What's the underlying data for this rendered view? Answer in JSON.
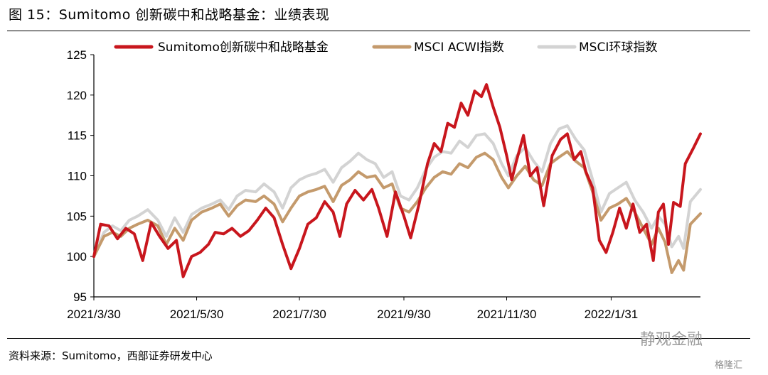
{
  "figure": {
    "title": "图 15：Sumitomo 创新碳中和战略基金：业绩表现",
    "source": "资料来源：Sumitomo，西部证券研发中心",
    "watermark": "静观金融",
    "watermark2": "格隆汇"
  },
  "chart_data": {
    "type": "line",
    "title": "",
    "xlabel": "",
    "ylabel": "",
    "ylim": [
      95,
      125
    ],
    "yticks": [
      95,
      100,
      105,
      110,
      115,
      120,
      125
    ],
    "xlim": [
      "2021-03-30",
      "2022-03-25"
    ],
    "xticks": [
      "2021/3/30",
      "2021/5/30",
      "2021/7/30",
      "2021/9/30",
      "2021/11/30",
      "2022/1/31"
    ],
    "xtick_dates": [
      "2021-03-30",
      "2021-05-30",
      "2021-07-30",
      "2021-09-30",
      "2021-11-30",
      "2022-01-31"
    ],
    "legend_position": "top",
    "grid": false,
    "series": [
      {
        "name": "Sumitomo创新碳中和战略基金",
        "color": "#c8161d",
        "points": [
          [
            "2021-03-30",
            100.0
          ],
          [
            "2021-04-03",
            104.0
          ],
          [
            "2021-04-08",
            103.8
          ],
          [
            "2021-04-13",
            102.2
          ],
          [
            "2021-04-18",
            103.5
          ],
          [
            "2021-04-23",
            102.8
          ],
          [
            "2021-04-28",
            99.5
          ],
          [
            "2021-05-03",
            104.2
          ],
          [
            "2021-05-08",
            102.5
          ],
          [
            "2021-05-13",
            101.0
          ],
          [
            "2021-05-18",
            102.0
          ],
          [
            "2021-05-22",
            97.5
          ],
          [
            "2021-05-27",
            100.0
          ],
          [
            "2021-06-01",
            100.5
          ],
          [
            "2021-06-06",
            101.5
          ],
          [
            "2021-06-10",
            103.0
          ],
          [
            "2021-06-15",
            102.8
          ],
          [
            "2021-06-20",
            103.5
          ],
          [
            "2021-06-25",
            102.5
          ],
          [
            "2021-06-30",
            103.2
          ],
          [
            "2021-07-05",
            104.5
          ],
          [
            "2021-07-10",
            106.0
          ],
          [
            "2021-07-15",
            104.8
          ],
          [
            "2021-07-20",
            101.5
          ],
          [
            "2021-07-25",
            98.5
          ],
          [
            "2021-07-30",
            101.0
          ],
          [
            "2021-08-04",
            104.0
          ],
          [
            "2021-08-09",
            104.8
          ],
          [
            "2021-08-14",
            106.8
          ],
          [
            "2021-08-19",
            105.5
          ],
          [
            "2021-08-23",
            102.5
          ],
          [
            "2021-08-27",
            106.5
          ],
          [
            "2021-09-01",
            108.2
          ],
          [
            "2021-09-06",
            107.0
          ],
          [
            "2021-09-11",
            108.3
          ],
          [
            "2021-09-15",
            106.0
          ],
          [
            "2021-09-20",
            102.5
          ],
          [
            "2021-09-25",
            108.0
          ],
          [
            "2021-09-30",
            105.0
          ],
          [
            "2021-10-04",
            102.3
          ],
          [
            "2021-10-09",
            106.5
          ],
          [
            "2021-10-14",
            111.5
          ],
          [
            "2021-10-18",
            114.0
          ],
          [
            "2021-10-22",
            113.0
          ],
          [
            "2021-10-26",
            116.5
          ],
          [
            "2021-10-30",
            116.0
          ],
          [
            "2021-11-03",
            119.0
          ],
          [
            "2021-11-07",
            117.5
          ],
          [
            "2021-11-11",
            120.5
          ],
          [
            "2021-11-15",
            119.8
          ],
          [
            "2021-11-18",
            121.3
          ],
          [
            "2021-11-22",
            118.5
          ],
          [
            "2021-11-26",
            116.0
          ],
          [
            "2021-11-30",
            112.5
          ],
          [
            "2021-12-03",
            109.5
          ],
          [
            "2021-12-06",
            112.0
          ],
          [
            "2021-12-10",
            115.0
          ],
          [
            "2021-12-14",
            110.0
          ],
          [
            "2021-12-18",
            111.0
          ],
          [
            "2021-12-22",
            106.3
          ],
          [
            "2021-12-27",
            112.5
          ],
          [
            "2022-01-01",
            114.5
          ],
          [
            "2022-01-05",
            115.2
          ],
          [
            "2022-01-09",
            112.0
          ],
          [
            "2022-01-13",
            113.0
          ],
          [
            "2022-01-16",
            110.5
          ],
          [
            "2022-01-20",
            108.5
          ],
          [
            "2022-01-24",
            102.0
          ],
          [
            "2022-01-28",
            100.5
          ],
          [
            "2022-02-01",
            103.0
          ],
          [
            "2022-02-05",
            106.0
          ],
          [
            "2022-02-09",
            103.5
          ],
          [
            "2022-02-13",
            106.5
          ],
          [
            "2022-02-17",
            103.0
          ],
          [
            "2022-02-21",
            104.0
          ],
          [
            "2022-02-25",
            99.5
          ],
          [
            "2022-02-28",
            105.5
          ],
          [
            "2022-03-03",
            106.5
          ],
          [
            "2022-03-06",
            101.5
          ],
          [
            "2022-03-09",
            106.7
          ],
          [
            "2022-03-13",
            106.2
          ],
          [
            "2022-03-16",
            111.5
          ],
          [
            "2022-03-21",
            113.5
          ],
          [
            "2022-03-25",
            115.2
          ]
        ]
      },
      {
        "name": "MSCI ACWI指数",
        "color": "#c49a6c",
        "points": [
          [
            "2021-03-30",
            100.0
          ],
          [
            "2021-04-05",
            102.5
          ],
          [
            "2021-04-10",
            103.0
          ],
          [
            "2021-04-15",
            102.5
          ],
          [
            "2021-04-20",
            103.5
          ],
          [
            "2021-04-25",
            104.0
          ],
          [
            "2021-05-01",
            104.5
          ],
          [
            "2021-05-07",
            103.8
          ],
          [
            "2021-05-12",
            101.5
          ],
          [
            "2021-05-17",
            103.5
          ],
          [
            "2021-05-22",
            102.0
          ],
          [
            "2021-05-27",
            104.5
          ],
          [
            "2021-06-02",
            105.5
          ],
          [
            "2021-06-08",
            106.0
          ],
          [
            "2021-06-13",
            106.5
          ],
          [
            "2021-06-18",
            105.0
          ],
          [
            "2021-06-23",
            106.3
          ],
          [
            "2021-06-28",
            107.0
          ],
          [
            "2021-07-04",
            106.8
          ],
          [
            "2021-07-09",
            107.5
          ],
          [
            "2021-07-15",
            106.5
          ],
          [
            "2021-07-20",
            104.3
          ],
          [
            "2021-07-25",
            106.0
          ],
          [
            "2021-07-30",
            107.5
          ],
          [
            "2021-08-04",
            108.0
          ],
          [
            "2021-08-09",
            108.3
          ],
          [
            "2021-08-14",
            108.7
          ],
          [
            "2021-08-19",
            106.8
          ],
          [
            "2021-08-24",
            108.8
          ],
          [
            "2021-08-29",
            109.5
          ],
          [
            "2021-09-03",
            110.5
          ],
          [
            "2021-09-08",
            109.8
          ],
          [
            "2021-09-13",
            110.0
          ],
          [
            "2021-09-18",
            108.5
          ],
          [
            "2021-09-23",
            109.0
          ],
          [
            "2021-09-28",
            106.0
          ],
          [
            "2021-10-03",
            105.5
          ],
          [
            "2021-10-08",
            106.8
          ],
          [
            "2021-10-13",
            108.5
          ],
          [
            "2021-10-18",
            109.8
          ],
          [
            "2021-10-23",
            110.5
          ],
          [
            "2021-10-28",
            110.2
          ],
          [
            "2021-11-02",
            111.5
          ],
          [
            "2021-11-07",
            111.0
          ],
          [
            "2021-11-12",
            112.3
          ],
          [
            "2021-11-17",
            112.8
          ],
          [
            "2021-11-22",
            112.0
          ],
          [
            "2021-11-27",
            109.8
          ],
          [
            "2021-12-01",
            108.5
          ],
          [
            "2021-12-06",
            110.0
          ],
          [
            "2021-12-11",
            111.2
          ],
          [
            "2021-12-16",
            109.5
          ],
          [
            "2021-12-21",
            108.8
          ],
          [
            "2021-12-26",
            111.5
          ],
          [
            "2021-12-31",
            112.3
          ],
          [
            "2022-01-05",
            113.0
          ],
          [
            "2022-01-10",
            111.8
          ],
          [
            "2022-01-15",
            111.0
          ],
          [
            "2022-01-20",
            108.0
          ],
          [
            "2022-01-25",
            104.5
          ],
          [
            "2022-01-30",
            106.0
          ],
          [
            "2022-02-04",
            106.5
          ],
          [
            "2022-02-09",
            107.2
          ],
          [
            "2022-02-14",
            105.5
          ],
          [
            "2022-02-19",
            103.5
          ],
          [
            "2022-02-24",
            101.5
          ],
          [
            "2022-02-28",
            103.5
          ],
          [
            "2022-03-04",
            101.8
          ],
          [
            "2022-03-08",
            98.0
          ],
          [
            "2022-03-12",
            99.5
          ],
          [
            "2022-03-15",
            98.3
          ],
          [
            "2022-03-19",
            104.0
          ],
          [
            "2022-03-25",
            105.3
          ]
        ]
      },
      {
        "name": "MSCI环球指数",
        "color": "#d3d3d3",
        "points": [
          [
            "2021-03-30",
            100.0
          ],
          [
            "2021-04-05",
            103.0
          ],
          [
            "2021-04-10",
            103.8
          ],
          [
            "2021-04-15",
            103.2
          ],
          [
            "2021-04-20",
            104.5
          ],
          [
            "2021-04-25",
            105.0
          ],
          [
            "2021-05-01",
            105.8
          ],
          [
            "2021-05-07",
            104.5
          ],
          [
            "2021-05-12",
            102.5
          ],
          [
            "2021-05-17",
            104.8
          ],
          [
            "2021-05-22",
            103.0
          ],
          [
            "2021-05-27",
            105.2
          ],
          [
            "2021-06-02",
            106.0
          ],
          [
            "2021-06-08",
            106.5
          ],
          [
            "2021-06-13",
            107.0
          ],
          [
            "2021-06-18",
            105.8
          ],
          [
            "2021-06-23",
            107.5
          ],
          [
            "2021-06-28",
            108.2
          ],
          [
            "2021-07-04",
            108.0
          ],
          [
            "2021-07-09",
            109.0
          ],
          [
            "2021-07-15",
            108.0
          ],
          [
            "2021-07-20",
            106.0
          ],
          [
            "2021-07-25",
            108.5
          ],
          [
            "2021-07-30",
            109.5
          ],
          [
            "2021-08-04",
            110.0
          ],
          [
            "2021-08-09",
            110.3
          ],
          [
            "2021-08-14",
            110.8
          ],
          [
            "2021-08-19",
            109.2
          ],
          [
            "2021-08-24",
            111.0
          ],
          [
            "2021-08-29",
            111.8
          ],
          [
            "2021-09-03",
            112.8
          ],
          [
            "2021-09-08",
            112.0
          ],
          [
            "2021-09-13",
            111.5
          ],
          [
            "2021-09-18",
            109.8
          ],
          [
            "2021-09-23",
            110.5
          ],
          [
            "2021-09-28",
            107.5
          ],
          [
            "2021-10-03",
            107.0
          ],
          [
            "2021-10-08",
            108.5
          ],
          [
            "2021-10-13",
            110.8
          ],
          [
            "2021-10-18",
            112.3
          ],
          [
            "2021-10-23",
            113.0
          ],
          [
            "2021-10-28",
            112.8
          ],
          [
            "2021-11-02",
            114.3
          ],
          [
            "2021-11-07",
            113.5
          ],
          [
            "2021-11-12",
            115.0
          ],
          [
            "2021-11-17",
            115.2
          ],
          [
            "2021-11-22",
            114.0
          ],
          [
            "2021-11-27",
            111.5
          ],
          [
            "2021-12-01",
            110.0
          ],
          [
            "2021-12-06",
            112.5
          ],
          [
            "2021-12-11",
            113.5
          ],
          [
            "2021-12-16",
            111.8
          ],
          [
            "2021-12-21",
            110.5
          ],
          [
            "2021-12-26",
            114.0
          ],
          [
            "2021-12-31",
            115.8
          ],
          [
            "2022-01-05",
            116.2
          ],
          [
            "2022-01-10",
            114.5
          ],
          [
            "2022-01-15",
            113.2
          ],
          [
            "2022-01-20",
            109.5
          ],
          [
            "2022-01-25",
            105.5
          ],
          [
            "2022-01-30",
            107.8
          ],
          [
            "2022-02-04",
            108.5
          ],
          [
            "2022-02-09",
            109.2
          ],
          [
            "2022-02-14",
            107.0
          ],
          [
            "2022-02-19",
            105.5
          ],
          [
            "2022-02-24",
            103.5
          ],
          [
            "2022-02-28",
            105.0
          ],
          [
            "2022-03-04",
            104.0
          ],
          [
            "2022-03-08",
            101.2
          ],
          [
            "2022-03-12",
            102.5
          ],
          [
            "2022-03-15",
            101.0
          ],
          [
            "2022-03-19",
            106.8
          ],
          [
            "2022-03-25",
            108.3
          ]
        ]
      }
    ]
  }
}
